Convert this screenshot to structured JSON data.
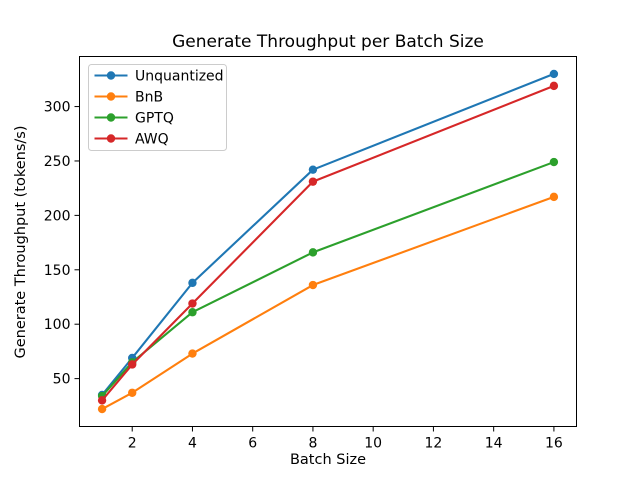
{
  "chart_data": {
    "type": "line",
    "title": "Generate Throughput per Batch Size",
    "xlabel": "Batch Size",
    "ylabel": "Generate Throughput (tokens/s)",
    "x": [
      1,
      2,
      4,
      8,
      16
    ],
    "series": [
      {
        "name": "Unquantized",
        "color": "#1f77b4",
        "values": [
          35,
          69,
          138,
          242,
          330
        ]
      },
      {
        "name": "BnB",
        "color": "#ff7f0e",
        "values": [
          22,
          37,
          73,
          136,
          217
        ]
      },
      {
        "name": "GPTQ",
        "color": "#2ca02c",
        "values": [
          34,
          65,
          111,
          166,
          249
        ]
      },
      {
        "name": "AWQ",
        "color": "#d62728",
        "values": [
          30,
          63,
          119,
          231,
          319
        ]
      }
    ],
    "xticks": [
      2,
      4,
      6,
      8,
      10,
      12,
      14,
      16
    ],
    "yticks": [
      50,
      100,
      150,
      200,
      250,
      300
    ],
    "xlim": [
      0.25,
      16.75
    ],
    "ylim": [
      6,
      346
    ],
    "grid": false,
    "marker": "o",
    "legend": {
      "position": "upper-left",
      "entries": [
        "Unquantized",
        "BnB",
        "GPTQ",
        "AWQ"
      ],
      "border_color": "#cccccc",
      "background": "#ffffff"
    },
    "axis_color": "#000000"
  }
}
